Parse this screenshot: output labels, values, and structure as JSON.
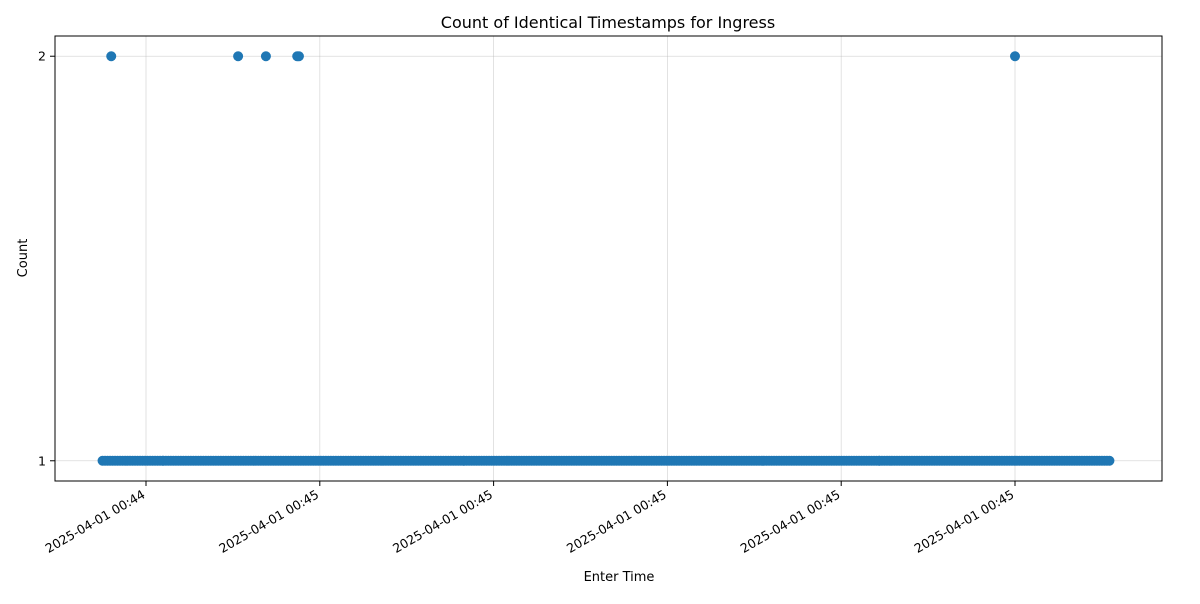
{
  "chart_data": {
    "type": "scatter",
    "title": "Count of Identical Timestamps for Ingress",
    "xlabel": "Enter Time",
    "ylabel": "Count",
    "x_tick_labels": [
      "2025-04-01 00:44",
      "2025-04-01 00:45",
      "2025-04-01 00:45",
      "2025-04-01 00:45",
      "2025-04-01 00:45",
      "2025-04-01 00:45"
    ],
    "y_ticks": [
      1,
      2
    ],
    "y_tick_labels": [
      "1",
      "2"
    ],
    "ylim": [
      0.95,
      2.05
    ],
    "x_range_seconds_from_first_tick": [
      -0.6,
      6.2
    ],
    "grid": true,
    "marker_color": "#1f77b4",
    "count_1_segments_seconds": [
      [
        -0.25,
        0.1
      ],
      [
        0.1,
        1.83
      ],
      [
        1.83,
        4.22
      ],
      [
        4.22,
        5.55
      ]
    ],
    "count_2_points_seconds": [
      -0.2,
      0.53,
      0.69,
      0.87,
      0.88,
      5.0
    ]
  }
}
